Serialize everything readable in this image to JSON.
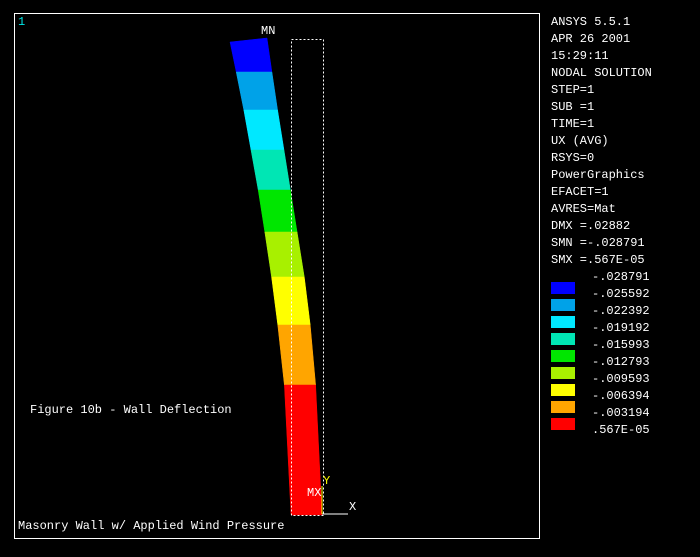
{
  "window_number": "1",
  "info_lines": [
    "ANSYS 5.5.1",
    "APR 26 2001",
    "15:29:11",
    "NODAL SOLUTION",
    "STEP=1",
    "SUB =1",
    "TIME=1",
    "UX        (AVG)",
    "RSYS=0",
    "PowerGraphics",
    "EFACET=1",
    "AVRES=Mat",
    "DMX =.02882",
    "SMN =-.028791",
    "SMX =.567E-05"
  ],
  "legend": {
    "labels": [
      "-.028791",
      "-.025592",
      "-.022392",
      "-.019192",
      "-.015993",
      "-.012793",
      "-.009593",
      "-.006394",
      "-.003194",
      ".567E-05"
    ],
    "colors": [
      "#0000ff",
      "#00a2e8",
      "#00e8ff",
      "#00e6b4",
      "#00e600",
      "#a8f000",
      "#ffff00",
      "#ffa500",
      "#ff0000"
    ]
  },
  "markers": {
    "min": "MN",
    "max": "MX",
    "y_axis": "Y",
    "x_axis": "X"
  },
  "caption": "Figure 10b - Wall Deflection",
  "title": "Masonry Wall w/ Applied Wind Pressure"
}
